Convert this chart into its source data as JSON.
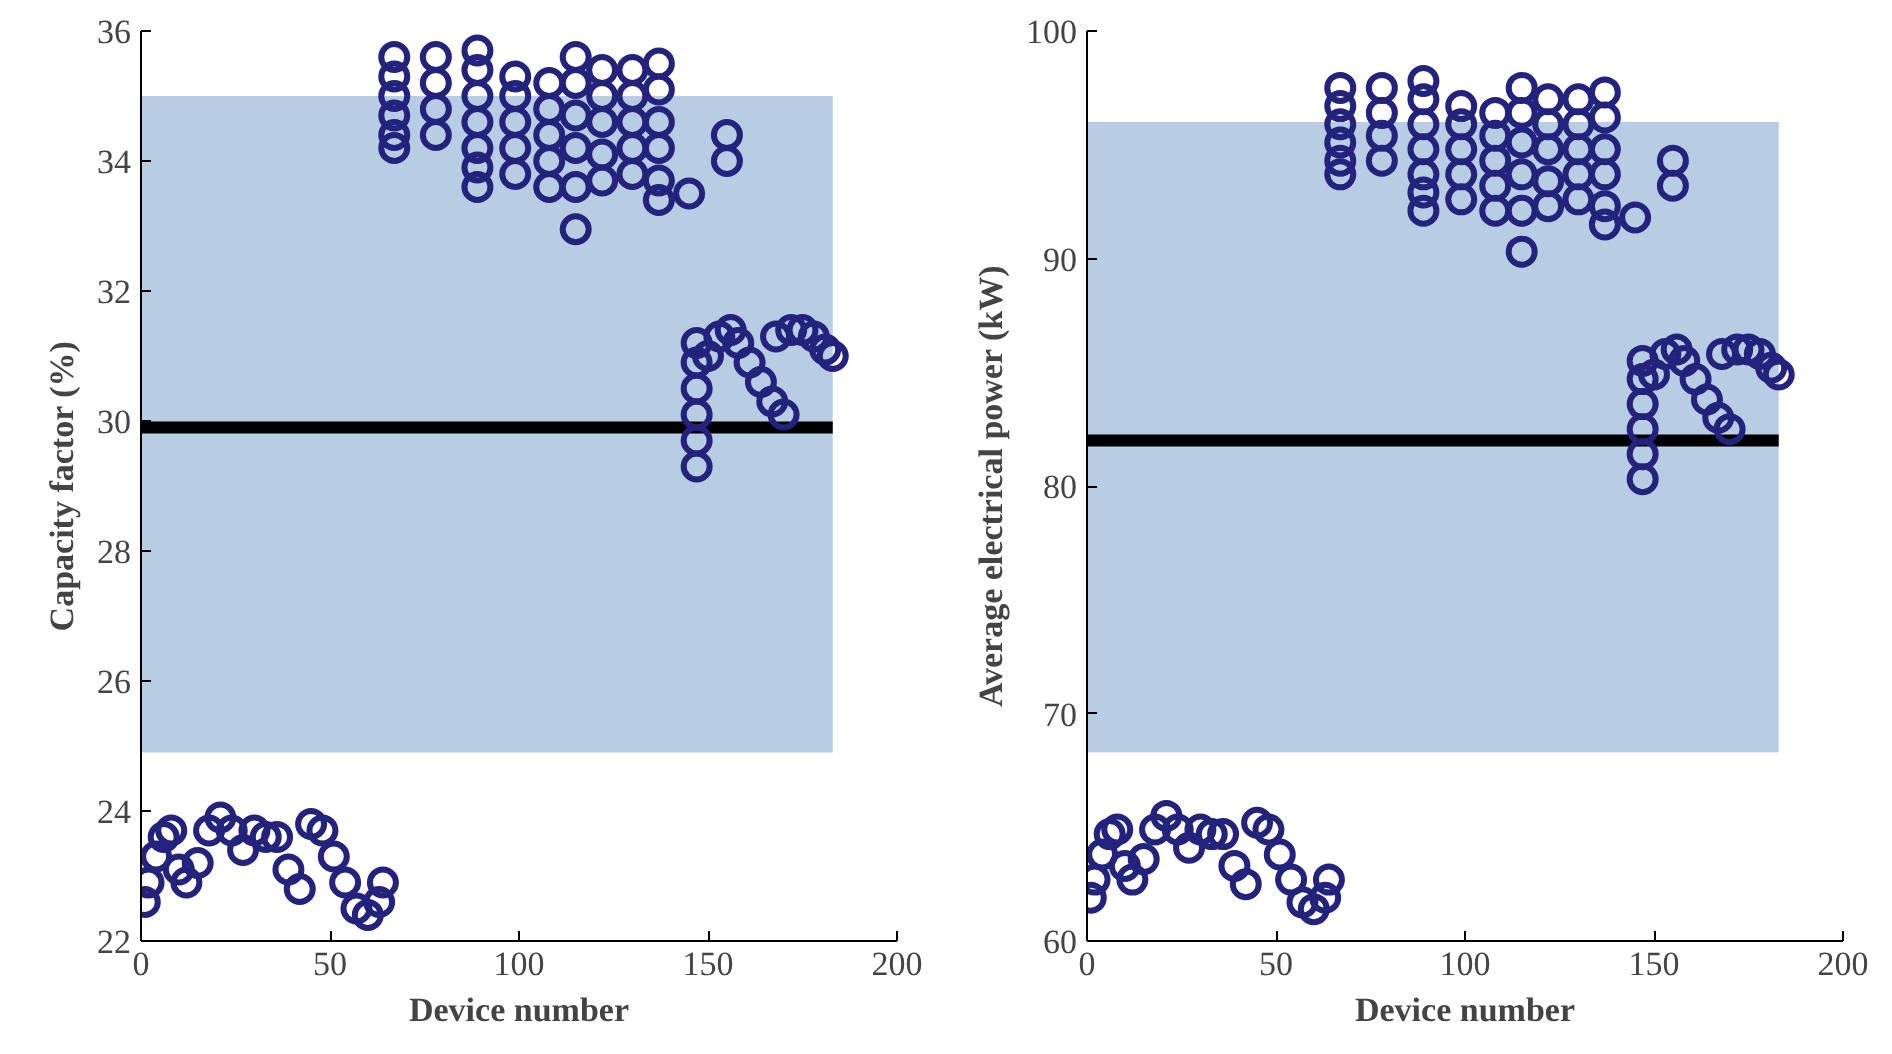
{
  "chart_data": [
    {
      "type": "scatter",
      "xlabel": "Device number",
      "ylabel": "Capacity factor (%)",
      "xlim": [
        0,
        200
      ],
      "xticks": [
        0,
        50,
        100,
        150,
        200
      ],
      "ylim": [
        22,
        36
      ],
      "yticks": [
        22,
        24,
        26,
        28,
        30,
        32,
        34,
        36
      ],
      "grid": false,
      "marker": "circle",
      "bands": [
        {
          "axis": "y",
          "from": 24.9,
          "to": 35,
          "color": "#b8cce4"
        }
      ],
      "ref_lines": [
        {
          "axis": "y",
          "value": 29.9,
          "color": "#000000"
        }
      ],
      "series": [
        {
          "color": "#23237e",
          "x": [
            1,
            2,
            4,
            6,
            8,
            10,
            12,
            15,
            18,
            21,
            24,
            27,
            30,
            33,
            36,
            39,
            42,
            45,
            48,
            51,
            54,
            57,
            60,
            63,
            64,
            67,
            67,
            67,
            67,
            67,
            67,
            78,
            78,
            78,
            78,
            89,
            89,
            89,
            89,
            89,
            89,
            89,
            99,
            99,
            99,
            99,
            99,
            108,
            108,
            108,
            108,
            108,
            115,
            115,
            115,
            115,
            115,
            115,
            122,
            122,
            122,
            122,
            122,
            130,
            130,
            130,
            130,
            130,
            137,
            137,
            137,
            137,
            137,
            137,
            145,
            155,
            155,
            147,
            147,
            147,
            147,
            147,
            147,
            150,
            153,
            156,
            158,
            161,
            164,
            167,
            170,
            168,
            172,
            175,
            178,
            181,
            183
          ],
          "values": [
            22.6,
            22.9,
            23.3,
            23.6,
            23.7,
            23.1,
            22.9,
            23.2,
            23.7,
            23.9,
            23.7,
            23.4,
            23.7,
            23.6,
            23.6,
            23.1,
            22.8,
            23.8,
            23.7,
            23.3,
            22.9,
            22.5,
            22.4,
            22.6,
            22.9,
            35.6,
            35.3,
            35.0,
            34.7,
            34.4,
            34.2,
            35.6,
            35.2,
            34.8,
            34.4,
            35.7,
            35.4,
            35.0,
            34.6,
            34.2,
            33.9,
            33.6,
            35.3,
            35.0,
            34.6,
            34.2,
            33.8,
            35.2,
            34.8,
            34.4,
            34.0,
            33.6,
            35.6,
            35.2,
            34.7,
            34.2,
            33.6,
            32.95,
            35.4,
            35.0,
            34.6,
            34.1,
            33.7,
            35.4,
            35.0,
            34.6,
            34.2,
            33.8,
            35.5,
            35.1,
            34.6,
            34.2,
            33.7,
            33.4,
            33.5,
            34.4,
            34.0,
            31.2,
            30.9,
            30.5,
            30.1,
            29.7,
            29.3,
            31.0,
            31.3,
            31.4,
            31.2,
            30.9,
            30.6,
            30.3,
            30.1,
            31.3,
            31.4,
            31.4,
            31.3,
            31.1,
            31.0
          ]
        }
      ]
    },
    {
      "type": "scatter",
      "xlabel": "Device number",
      "ylabel": "Average electrical power (kW)",
      "xlim": [
        0,
        200
      ],
      "xticks": [
        0,
        50,
        100,
        150,
        200
      ],
      "ylim": [
        60,
        100
      ],
      "yticks": [
        60,
        70,
        80,
        90,
        100
      ],
      "grid": false,
      "marker": "circle",
      "bands": [
        {
          "axis": "y",
          "from": 68.3,
          "to": 96,
          "color": "#b8cce4"
        }
      ],
      "ref_lines": [
        {
          "axis": "y",
          "value": 82,
          "color": "#000000"
        }
      ],
      "series": [
        {
          "color": "#23237e",
          "x": [
            1,
            2,
            4,
            6,
            8,
            10,
            12,
            15,
            18,
            21,
            24,
            27,
            30,
            33,
            36,
            39,
            42,
            45,
            48,
            51,
            54,
            57,
            60,
            63,
            64,
            67,
            67,
            67,
            67,
            67,
            67,
            78,
            78,
            78,
            78,
            89,
            89,
            89,
            89,
            89,
            89,
            89,
            99,
            99,
            99,
            99,
            99,
            108,
            108,
            108,
            108,
            108,
            115,
            115,
            115,
            115,
            115,
            115,
            122,
            122,
            122,
            122,
            122,
            130,
            130,
            130,
            130,
            130,
            137,
            137,
            137,
            137,
            137,
            137,
            145,
            155,
            155,
            147,
            147,
            147,
            147,
            147,
            147,
            150,
            153,
            156,
            158,
            161,
            164,
            167,
            170,
            168,
            172,
            175,
            178,
            181,
            183
          ],
          "values": [
            61.9,
            62.7,
            63.8,
            64.7,
            64.9,
            63.3,
            62.7,
            63.6,
            64.9,
            65.5,
            64.9,
            64.1,
            64.9,
            64.7,
            64.7,
            63.3,
            62.5,
            65.2,
            64.9,
            63.8,
            62.7,
            61.7,
            61.4,
            61.9,
            62.7,
            97.5,
            96.7,
            95.9,
            95.1,
            94.3,
            93.7,
            97.5,
            96.4,
            95.4,
            94.3,
            97.8,
            97.0,
            95.9,
            94.8,
            93.7,
            92.9,
            92.1,
            96.7,
            95.9,
            94.8,
            93.7,
            92.6,
            96.4,
            95.4,
            94.3,
            93.2,
            92.1,
            97.5,
            96.4,
            95.1,
            93.7,
            92.1,
            90.3,
            97.0,
            95.9,
            94.8,
            93.4,
            92.3,
            97.0,
            95.9,
            94.8,
            93.7,
            92.6,
            97.3,
            96.2,
            94.8,
            93.7,
            92.3,
            91.5,
            91.8,
            94.3,
            93.2,
            85.5,
            84.7,
            83.6,
            82.5,
            81.4,
            80.3,
            84.9,
            85.8,
            86.0,
            85.5,
            84.7,
            83.8,
            83.0,
            82.5,
            85.8,
            86.0,
            86.0,
            85.8,
            85.2,
            84.9
          ]
        }
      ]
    }
  ]
}
